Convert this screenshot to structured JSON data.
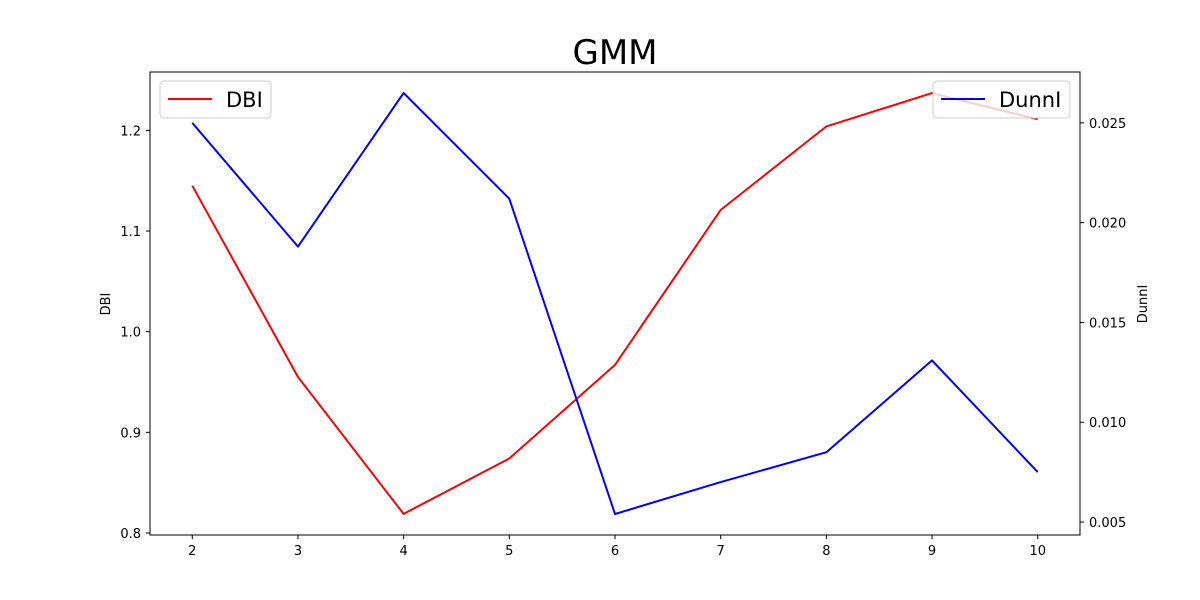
{
  "chart_data": {
    "type": "line",
    "title": "GMM",
    "xlabel": "",
    "x": [
      2,
      3,
      4,
      5,
      6,
      7,
      8,
      9,
      10
    ],
    "xticks": [
      "2",
      "3",
      "4",
      "5",
      "6",
      "7",
      "8",
      "9",
      "10"
    ],
    "xlim": [
      1.6,
      10.4
    ],
    "grid": false,
    "series": [
      {
        "name": "DBI",
        "axis": "left",
        "color": "#ff0000",
        "values": [
          1.145,
          0.955,
          0.819,
          0.874,
          0.967,
          1.121,
          1.204,
          1.237,
          1.211
        ]
      },
      {
        "name": "DunnI",
        "axis": "right",
        "color": "#0000ff",
        "values": [
          0.025,
          0.0188,
          0.0265,
          0.0212,
          0.0054,
          0.007,
          0.0085,
          0.0131,
          0.0075
        ]
      }
    ],
    "left_axis": {
      "label": "DBI",
      "ylim": [
        0.798,
        1.258
      ],
      "ticks": [
        0.8,
        0.9,
        1.0,
        1.1,
        1.2
      ],
      "tick_labels": [
        "0.8",
        "0.9",
        "1.0",
        "1.1",
        "1.2"
      ]
    },
    "right_axis": {
      "label": "DunnI",
      "ylim": [
        0.00435,
        0.02755
      ],
      "ticks": [
        0.005,
        0.01,
        0.015,
        0.02,
        0.025
      ],
      "tick_labels": [
        "0.005",
        "0.010",
        "0.015",
        "0.020",
        "0.025"
      ]
    },
    "legends": [
      {
        "series": "DBI",
        "placement": "upper-left"
      },
      {
        "series": "DunnI",
        "placement": "upper-right"
      }
    ]
  }
}
